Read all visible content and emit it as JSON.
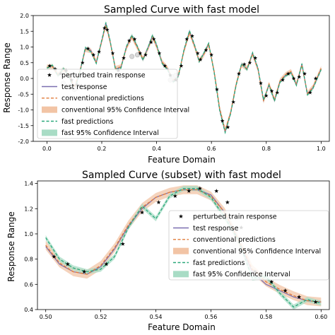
{
  "chart_data": [
    {
      "type": "line",
      "title": "Sampled Curve with fast model",
      "xlabel": "Feature Domain",
      "ylabel": "Response Range",
      "xlim": [
        -0.05,
        1.03
      ],
      "ylim": [
        -2.0,
        2.0
      ],
      "xticks": [
        "0.0",
        "0.2",
        "0.4",
        "0.6",
        "0.8",
        "1.0"
      ],
      "xtick_values": [
        0.0,
        0.2,
        0.4,
        0.6,
        0.8,
        1.0
      ],
      "yticks": [
        "-2.0",
        "-1.5",
        "-1.0",
        "-0.5",
        "0.0",
        "0.5",
        "1.0",
        "1.5",
        "2.0"
      ],
      "ytick_values": [
        -2.0,
        -1.5,
        -1.0,
        -0.5,
        0.0,
        0.5,
        1.0,
        1.5,
        2.0
      ],
      "grid": false,
      "legend_position": "lower-left",
      "x": [
        0.0,
        0.02,
        0.04,
        0.06,
        0.08,
        0.1,
        0.12,
        0.14,
        0.16,
        0.18,
        0.2,
        0.215,
        0.23,
        0.25,
        0.27,
        0.29,
        0.31,
        0.33,
        0.35,
        0.37,
        0.385,
        0.4,
        0.42,
        0.44,
        0.46,
        0.48,
        0.5,
        0.52,
        0.54,
        0.555,
        0.57,
        0.59,
        0.61,
        0.63,
        0.65,
        0.67,
        0.69,
        0.71,
        0.73,
        0.75,
        0.77,
        0.79,
        0.81,
        0.83,
        0.85,
        0.87,
        0.89,
        0.91,
        0.93,
        0.95,
        0.97,
        1.0
      ],
      "series": [
        {
          "name": "test response",
          "color": "#7b6fb0",
          "values": [
            0.35,
            0.4,
            0.1,
            0.3,
            0.1,
            -0.35,
            0.2,
            0.95,
            0.9,
            0.5,
            1.2,
            1.75,
            1.2,
            0.3,
            0.35,
            1.0,
            1.35,
            1.0,
            0.6,
            1.0,
            1.35,
            1.05,
            0.5,
            0.3,
            -0.1,
            0.1,
            0.9,
            1.5,
            1.0,
            0.55,
            0.75,
            1.1,
            0.2,
            -1.0,
            -1.7,
            -1.1,
            -0.2,
            0.45,
            0.3,
            0.8,
            0.3,
            -0.7,
            -0.2,
            -0.7,
            -0.1,
            0.1,
            0.2,
            -0.2,
            0.45,
            -0.5,
            -0.3,
            0.3
          ]
        },
        {
          "name": "conventional predictions",
          "color": "#e07b39",
          "values": [
            0.36,
            0.38,
            0.12,
            0.28,
            0.12,
            -0.3,
            0.22,
            0.92,
            0.88,
            0.52,
            1.18,
            1.7,
            1.18,
            0.32,
            0.37,
            0.98,
            1.32,
            0.98,
            0.62,
            0.98,
            1.32,
            1.02,
            0.52,
            0.32,
            -0.08,
            0.12,
            0.88,
            1.45,
            0.98,
            0.57,
            0.73,
            1.07,
            0.22,
            -0.95,
            -1.65,
            -1.08,
            -0.18,
            0.43,
            0.32,
            0.78,
            0.28,
            -0.72,
            -0.18,
            -0.68,
            -0.08,
            0.12,
            0.22,
            -0.18,
            0.43,
            -0.48,
            -0.28,
            0.32
          ]
        },
        {
          "name": "fast predictions",
          "color": "#2aa87a",
          "values": [
            0.33,
            0.42,
            0.08,
            0.32,
            0.08,
            -0.38,
            0.18,
            0.98,
            0.85,
            0.48,
            1.22,
            1.78,
            1.22,
            0.28,
            0.33,
            1.02,
            1.38,
            1.02,
            0.58,
            1.02,
            1.38,
            1.08,
            0.48,
            0.28,
            -0.12,
            0.08,
            0.92,
            1.52,
            1.02,
            0.53,
            0.77,
            1.12,
            0.18,
            -1.02,
            -1.72,
            -1.12,
            -0.22,
            0.47,
            0.28,
            0.82,
            0.32,
            -0.68,
            -0.22,
            -0.72,
            -0.12,
            0.08,
            0.18,
            -0.22,
            0.47,
            -0.52,
            -0.32,
            0.28
          ]
        }
      ],
      "conventional_band_halfwidth": 0.08,
      "fast_band_halfwidth": 0.05,
      "train_x": [
        0.01,
        0.03,
        0.05,
        0.07,
        0.09,
        0.11,
        0.13,
        0.15,
        0.17,
        0.19,
        0.21,
        0.22,
        0.24,
        0.26,
        0.28,
        0.3,
        0.32,
        0.34,
        0.36,
        0.38,
        0.39,
        0.41,
        0.43,
        0.45,
        0.47,
        0.49,
        0.51,
        0.53,
        0.55,
        0.56,
        0.58,
        0.6,
        0.62,
        0.64,
        0.66,
        0.68,
        0.7,
        0.72,
        0.74,
        0.76,
        0.78,
        0.8,
        0.82,
        0.84,
        0.86,
        0.88,
        0.9,
        0.92,
        0.94,
        0.96,
        0.98
      ],
      "train_y": [
        0.4,
        0.3,
        0.15,
        0.25,
        -0.05,
        -0.2,
        0.5,
        0.95,
        0.75,
        0.85,
        1.6,
        1.55,
        0.8,
        0.25,
        0.65,
        1.2,
        1.25,
        0.8,
        0.75,
        1.15,
        1.25,
        0.8,
        0.4,
        0.1,
        -0.05,
        0.4,
        1.25,
        1.35,
        0.8,
        0.6,
        0.9,
        0.75,
        -0.35,
        -1.35,
        -1.55,
        -0.75,
        0.15,
        0.45,
        0.5,
        0.65,
        -0.15,
        -0.55,
        -0.4,
        -0.45,
        -0.05,
        0.15,
        0.0,
        0.05,
        0.15,
        -0.45,
        0.0
      ],
      "outlier_x": [
        0.06,
        0.08,
        0.1,
        0.11,
        0.12,
        0.31,
        0.33,
        0.45,
        0.46,
        0.47
      ],
      "outlier_y": [
        -0.15,
        -0.25,
        -0.35,
        -0.3,
        -0.25,
        0.7,
        0.75,
        -0.05,
        0.05,
        0.1
      ],
      "legend": [
        {
          "label": "perturbed train response",
          "kind": "star"
        },
        {
          "label": "test response",
          "kind": "line",
          "color": "#7b6fb0"
        },
        {
          "label": "conventional predictions",
          "kind": "dash",
          "color": "#e07b39"
        },
        {
          "label": "conventional 95% Confidence Interval",
          "kind": "patch",
          "color": "#f2c4a5"
        },
        {
          "label": "fast predictions",
          "kind": "dash",
          "color": "#2aa87a"
        },
        {
          "label": "fast 95% Confidence Interval",
          "kind": "patch",
          "color": "#a8dcc5"
        }
      ]
    },
    {
      "type": "line",
      "title": "Sampled Curve (subset) with fast model",
      "xlabel": "Feature Domain",
      "ylabel": "Response Range",
      "xlim": [
        0.497,
        0.603
      ],
      "ylim": [
        0.4,
        1.42
      ],
      "xticks": [
        "0.50",
        "0.52",
        "0.54",
        "0.56",
        "0.58",
        "0.60"
      ],
      "xtick_values": [
        0.5,
        0.52,
        0.54,
        0.56,
        0.58,
        0.6
      ],
      "yticks": [
        "0.4",
        "0.6",
        "0.8",
        "1.0",
        "1.2",
        "1.4"
      ],
      "ytick_values": [
        0.4,
        0.6,
        0.8,
        1.0,
        1.2,
        1.4
      ],
      "grid": false,
      "legend_position": "center-right",
      "x": [
        0.5,
        0.505,
        0.51,
        0.515,
        0.52,
        0.525,
        0.53,
        0.535,
        0.54,
        0.545,
        0.55,
        0.555,
        0.56,
        0.565,
        0.57,
        0.575,
        0.58,
        0.585,
        0.59,
        0.595,
        0.6
      ],
      "series": [
        {
          "name": "test response",
          "color": "#7b6fb0",
          "values": [
            0.9,
            0.76,
            0.7,
            0.68,
            0.74,
            0.88,
            1.06,
            1.2,
            1.29,
            1.33,
            1.35,
            1.35,
            1.31,
            1.17,
            0.95,
            0.7,
            0.6,
            0.55,
            0.5,
            0.47,
            0.46
          ]
        },
        {
          "name": "conventional predictions",
          "color": "#e07b39",
          "values": [
            0.91,
            0.77,
            0.7,
            0.68,
            0.75,
            0.89,
            1.07,
            1.21,
            1.29,
            1.33,
            1.35,
            1.35,
            1.3,
            1.17,
            0.95,
            0.72,
            0.62,
            0.56,
            0.51,
            0.47,
            0.46
          ]
        },
        {
          "name": "fast predictions",
          "color": "#2aa87a",
          "values": [
            0.97,
            0.8,
            0.73,
            0.7,
            0.72,
            0.82,
            1.05,
            1.22,
            1.12,
            1.3,
            1.36,
            1.36,
            1.29,
            1.13,
            0.95,
            0.65,
            0.66,
            0.53,
            0.42,
            0.48,
            0.45
          ]
        }
      ],
      "conventional_band_halfwidth": 0.035,
      "fast_band_halfwidth": 0.02,
      "train_x": [
        0.503,
        0.508,
        0.514,
        0.522,
        0.528,
        0.535,
        0.541,
        0.547,
        0.552,
        0.556,
        0.562,
        0.566,
        0.571,
        0.576,
        0.582,
        0.587,
        0.592,
        0.598
      ],
      "train_y": [
        0.82,
        0.76,
        0.7,
        0.76,
        0.92,
        1.17,
        1.25,
        1.3,
        1.34,
        1.36,
        1.34,
        1.25,
        1.05,
        0.7,
        0.62,
        0.55,
        0.5,
        0.46
      ],
      "outlier_x": [],
      "outlier_y": [],
      "legend": [
        {
          "label": "perturbed train response",
          "kind": "star"
        },
        {
          "label": "test response",
          "kind": "line",
          "color": "#7b6fb0"
        },
        {
          "label": "conventional predictions",
          "kind": "dash",
          "color": "#e07b39"
        },
        {
          "label": "conventional 95% Confidence Interval",
          "kind": "patch",
          "color": "#f2c4a5"
        },
        {
          "label": "fast predictions",
          "kind": "dash",
          "color": "#2aa87a"
        },
        {
          "label": "fast 95% Confidence Interval",
          "kind": "patch",
          "color": "#a8dcc5"
        }
      ]
    }
  ]
}
